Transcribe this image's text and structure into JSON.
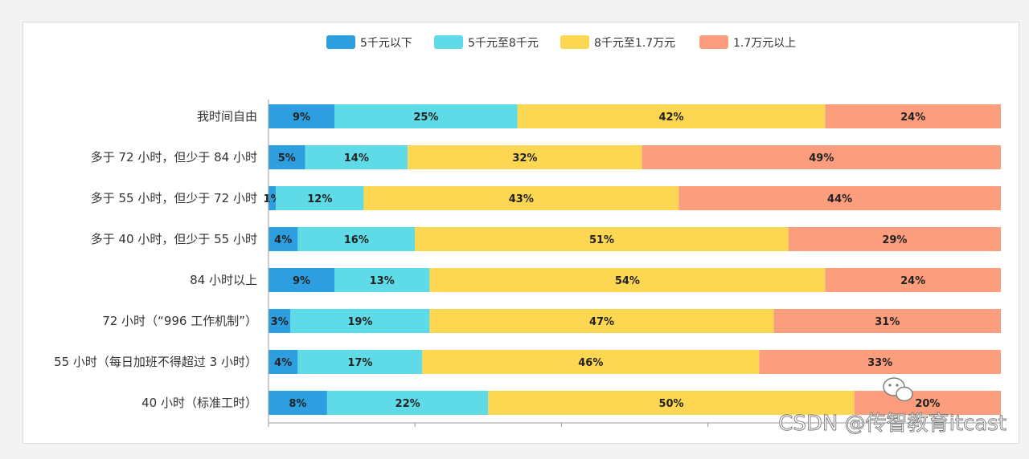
{
  "chart_data": {
    "type": "bar",
    "orientation": "horizontal",
    "stacked": true,
    "normalized": true,
    "categories": [
      "我时间自由",
      "多于 72 小时，但少于 84 小时",
      "多于 55 小时，但少于 72 小时",
      "多于 40 小时，但少于 55 小时",
      "84 小时以上",
      "72 小时（“996 工作机制”）",
      "55 小时（每日加班不得超过 3 小时）",
      "40 小时（标准工时）"
    ],
    "series": [
      {
        "name": "5千元以下",
        "color": "#2d9fe0",
        "values": [
          9,
          5,
          1,
          4,
          9,
          3,
          4,
          8
        ]
      },
      {
        "name": "5千元至8千元",
        "color": "#5fdbe8",
        "values": [
          25,
          14,
          12,
          16,
          13,
          19,
          17,
          22
        ]
      },
      {
        "name": "8千元至1.7万元",
        "color": "#fdd752",
        "values": [
          42,
          32,
          43,
          51,
          54,
          47,
          46,
          50
        ]
      },
      {
        "name": "1.7万元以上",
        "color": "#fc9e7e",
        "values": [
          24,
          49,
          44,
          29,
          24,
          31,
          33,
          20
        ]
      }
    ],
    "legend_position": "top-center",
    "grid": false
  },
  "watermark": {
    "text": "CSDN @传智教育itcast",
    "icon": "wechat-icon"
  }
}
